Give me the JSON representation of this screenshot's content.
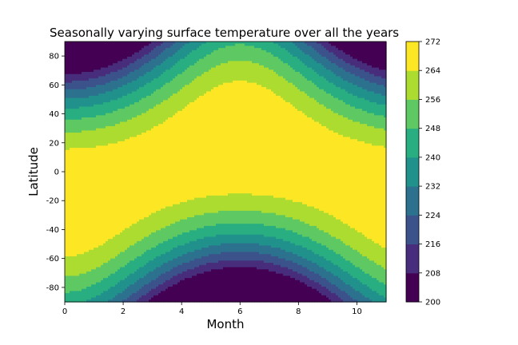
{
  "chart_data": {
    "type": "contourf",
    "title": "Seasonally varying surface temperature over all the years",
    "xlabel": "Month",
    "ylabel": "Latitude",
    "xlim": [
      0,
      11
    ],
    "ylim": [
      -90,
      90
    ],
    "x_ticks": [
      0,
      2,
      4,
      6,
      8,
      10
    ],
    "y_ticks": [
      -80,
      -60,
      -40,
      -20,
      0,
      20,
      40,
      60,
      80
    ],
    "colorbar": {
      "levels": [
        200,
        208,
        216,
        224,
        232,
        240,
        248,
        256,
        264,
        272
      ],
      "colors": [
        "#440154",
        "#472d7b",
        "#3b528b",
        "#2c728e",
        "#21918c",
        "#28ae80",
        "#5ec962",
        "#addc30",
        "#fde725"
      ],
      "tick_labels": [
        "200",
        "208",
        "216",
        "224",
        "232",
        "240",
        "248",
        "256",
        "264",
        "272"
      ]
    },
    "field_description": "Surface temperature (K) as a function of month (0-11) and latitude; warmest near equator, coldest at poles in respective winters"
  }
}
